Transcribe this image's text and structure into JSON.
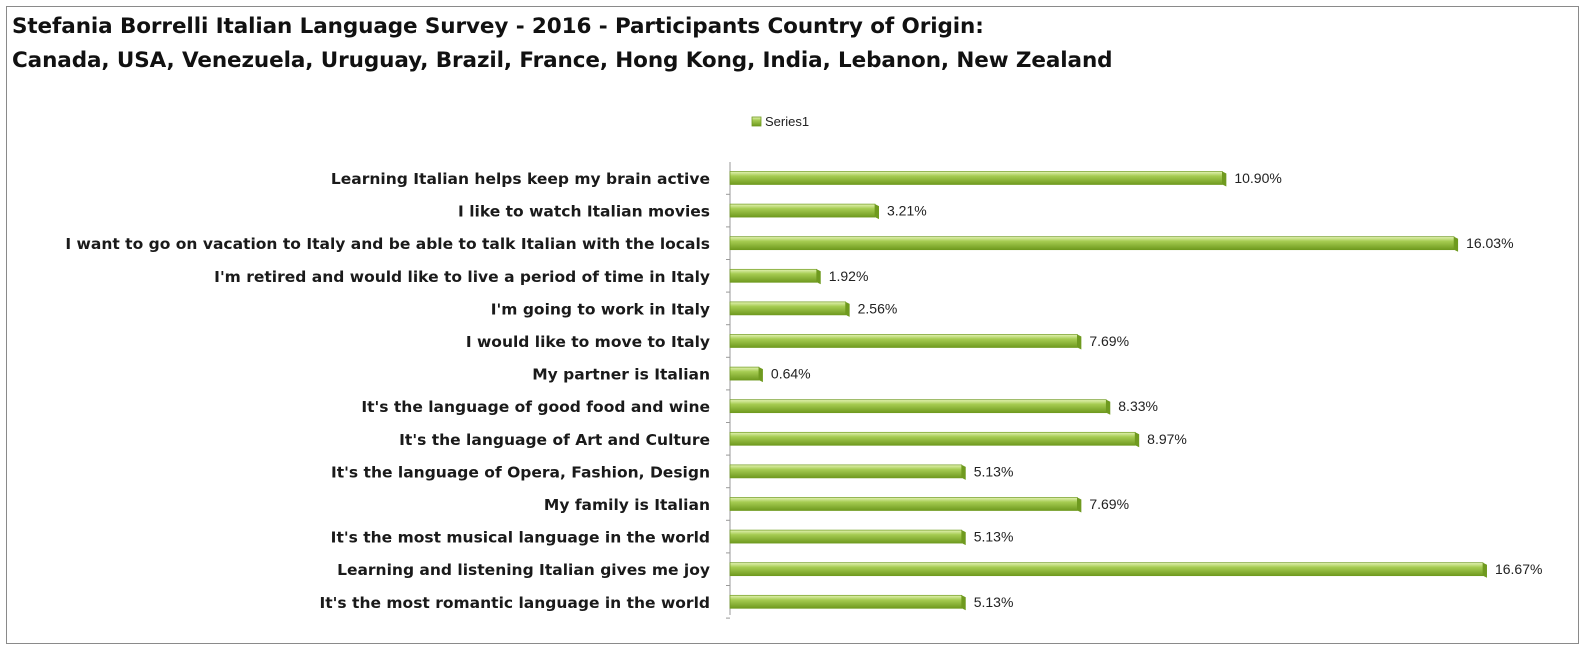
{
  "chart_data": {
    "type": "bar",
    "orientation": "horizontal",
    "title_line1": "Stefania Borrelli Italian Language Survey - 2016 - Participants Country of Origin:",
    "title_line2": "Canada, USA, Venezuela, Uruguay, Brazil, France, Hong Kong, India, Lebanon, New Zealand",
    "legend": {
      "position": "top",
      "entries": [
        "Series1"
      ]
    },
    "grid": false,
    "xlim": [
      0,
      17
    ],
    "colors": {
      "bar": "#a6cc52",
      "bar_dark": "#6f9a1f",
      "bar_light": "#e4f3b5"
    },
    "categories": [
      "Learning Italian helps keep my brain active",
      "I like to watch Italian movies",
      "I want to go on vacation to Italy and be able to talk Italian with the locals",
      "I'm retired and would like to live a period of time in Italy",
      "I'm going to work in Italy",
      "I would like to move to Italy",
      "My partner is Italian",
      "It's the language of good food and wine",
      "It's the language of Art and Culture",
      "It's the language of Opera, Fashion, Design",
      "My family is Italian",
      "It's the most musical language in the world",
      "Learning and listening Italian gives me joy",
      "It's the most romantic language in the world"
    ],
    "series": [
      {
        "name": "Series1",
        "values": [
          10.9,
          3.21,
          16.03,
          1.92,
          2.56,
          7.69,
          0.64,
          8.33,
          8.97,
          5.13,
          7.69,
          5.13,
          16.67,
          5.13
        ],
        "labels": [
          "10.90%",
          "3.21%",
          "16.03%",
          "1.92%",
          "2.56%",
          "7.69%",
          "0.64%",
          "8.33%",
          "8.97%",
          "5.13%",
          "7.69%",
          "5.13%",
          "16.67%",
          "5.13%"
        ]
      }
    ]
  }
}
